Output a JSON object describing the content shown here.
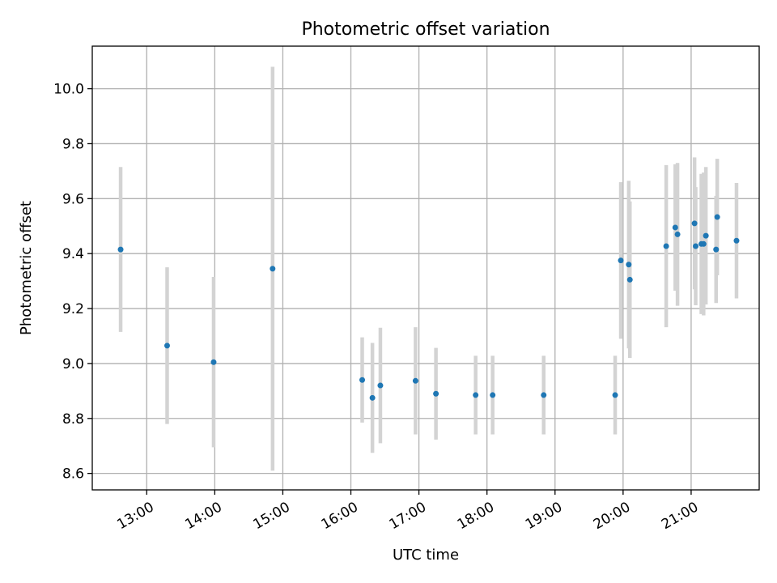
{
  "chart_data": {
    "type": "scatter",
    "title": "Photometric offset variation",
    "xlabel": "UTC time",
    "ylabel": "Photometric offset",
    "xlim": [
      "12:12",
      "22:00"
    ],
    "ylim": [
      8.54,
      10.155
    ],
    "grid": true,
    "x_ticks": [
      "13:00",
      "14:00",
      "15:00",
      "16:00",
      "17:00",
      "18:00",
      "19:00",
      "20:00",
      "21:00"
    ],
    "y_ticks": [
      "8.6",
      "8.8",
      "9.0",
      "9.2",
      "9.4",
      "9.6",
      "9.8",
      "10.0"
    ],
    "marker_color": "#1f77b4",
    "errorbar_color": "#d3d3d3",
    "points": [
      {
        "t": "12:37",
        "y": 9.415,
        "err": 0.3
      },
      {
        "t": "13:18",
        "y": 9.065,
        "err": 0.285
      },
      {
        "t": "13:59",
        "y": 9.005,
        "err": 0.31
      },
      {
        "t": "14:51",
        "y": 9.345,
        "err": 0.735
      },
      {
        "t": "16:10",
        "y": 8.94,
        "err": 0.155
      },
      {
        "t": "16:19",
        "y": 8.875,
        "err": 0.2
      },
      {
        "t": "16:26",
        "y": 8.92,
        "err": 0.21
      },
      {
        "t": "16:57",
        "y": 8.937,
        "err": 0.195
      },
      {
        "t": "17:15",
        "y": 8.89,
        "err": 0.167
      },
      {
        "t": "17:50",
        "y": 8.885,
        "err": 0.143
      },
      {
        "t": "18:05",
        "y": 8.885,
        "err": 0.143
      },
      {
        "t": "18:50",
        "y": 8.885,
        "err": 0.143
      },
      {
        "t": "19:53",
        "y": 8.885,
        "err": 0.143
      },
      {
        "t": "19:58",
        "y": 9.375,
        "err": 0.285
      },
      {
        "t": "20:05",
        "y": 9.36,
        "err": 0.305
      },
      {
        "t": "20:06",
        "y": 9.305,
        "err": 0.285
      },
      {
        "t": "20:38",
        "y": 9.427,
        "err": 0.295
      },
      {
        "t": "20:46",
        "y": 9.495,
        "err": 0.23
      },
      {
        "t": "20:48",
        "y": 9.47,
        "err": 0.26
      },
      {
        "t": "21:03",
        "y": 9.51,
        "err": 0.24
      },
      {
        "t": "21:04",
        "y": 9.427,
        "err": 0.215
      },
      {
        "t": "21:09",
        "y": 9.435,
        "err": 0.255
      },
      {
        "t": "21:11",
        "y": 9.435,
        "err": 0.26
      },
      {
        "t": "21:13",
        "y": 9.465,
        "err": 0.25
      },
      {
        "t": "21:22",
        "y": 9.415,
        "err": 0.195
      },
      {
        "t": "21:23",
        "y": 9.533,
        "err": 0.212
      },
      {
        "t": "21:40",
        "y": 9.447,
        "err": 0.21
      }
    ]
  }
}
